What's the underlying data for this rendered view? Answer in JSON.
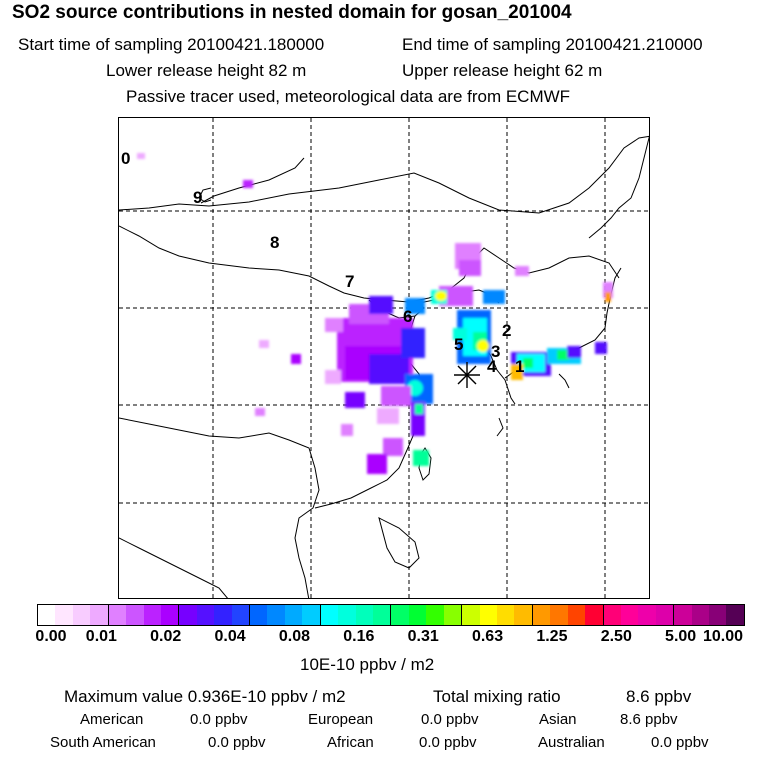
{
  "header": {
    "title": "SO2 source contributions in nested domain for gosan_201004",
    "start_label": "Start time of sampling 20100421.180000",
    "end_label": "End time of sampling 20100421.210000",
    "lower_label": "Lower release height   82 m",
    "upper_label": "Upper release height   62 m",
    "info": "Passive tracer used, meteorological data are from ECMWF"
  },
  "map": {
    "region_numbers": [
      "0",
      "9",
      "8",
      "7",
      "6",
      "5",
      "2",
      "3",
      "4",
      "1"
    ],
    "receptor_marker": "asterisk-icon"
  },
  "colorbar": {
    "colors": [
      "#ffffff",
      "#ffe6ff",
      "#f8ccff",
      "#eeaaff",
      "#e080ff",
      "#cc55ff",
      "#bb22ff",
      "#aa00ff",
      "#7700ff",
      "#5511ff",
      "#3322ff",
      "#2244ff",
      "#0066ff",
      "#0088ff",
      "#00aaff",
      "#00ccff",
      "#00ffff",
      "#00ffdd",
      "#00ffbb",
      "#00ff99",
      "#00ff66",
      "#00ff33",
      "#33ff00",
      "#88ff00",
      "#ccff00",
      "#ffff00",
      "#ffdd00",
      "#ffbb00",
      "#ff9900",
      "#ff7700",
      "#ff4400",
      "#ff0033",
      "#ff0077",
      "#ff0099",
      "#ee00aa",
      "#dd00aa",
      "#cc0099",
      "#aa0088",
      "#880077",
      "#550055"
    ],
    "ticks": [
      "0.00",
      "0.01",
      "0.02",
      "0.04",
      "0.08",
      "0.16",
      "0.31",
      "0.63",
      "1.25",
      "2.50",
      "5.00",
      "10.00"
    ],
    "unit": "10E-10 ppbv / m2"
  },
  "stats": {
    "max_label": "Maximum value  0.936E-10 ppbv / m2",
    "total_label": "Total mixing ratio",
    "total_value": "8.6 ppbv",
    "regions": [
      {
        "name": "American",
        "value": "0.0 ppbv"
      },
      {
        "name": "European",
        "value": "0.0 ppbv"
      },
      {
        "name": "Asian",
        "value": "8.6 ppbv"
      },
      {
        "name": "South American",
        "value": "0.0 ppbv"
      },
      {
        "name": "African",
        "value": "0.0 ppbv"
      },
      {
        "name": "Australian",
        "value": "0.0 ppbv"
      }
    ]
  }
}
